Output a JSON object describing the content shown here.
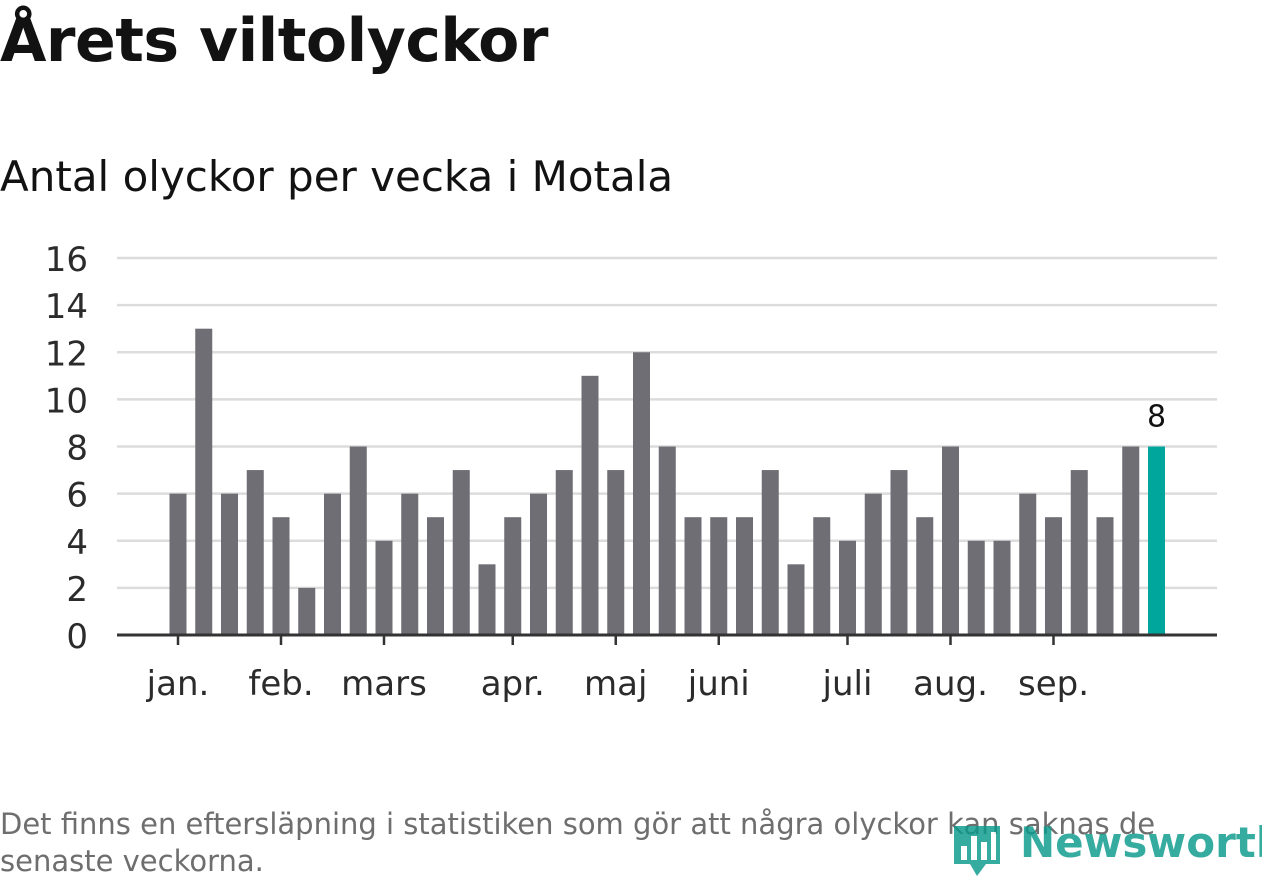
{
  "title": "Årets viltolyckor",
  "subtitle": "Antal olyckor per vecka i Motala",
  "note": "Det finns en eftersläpning i statistiken som gör att några olyckor kan saknas de senaste veckorna.",
  "logo": {
    "text": "Newsworthy",
    "icon": "bar-chart-speech-icon"
  },
  "colors": {
    "bar": "#6f6e74",
    "highlight": "#00a69b",
    "grid": "#dcdcdc",
    "axis": "#333333"
  },
  "chart_data": {
    "type": "bar",
    "title": "Antal olyckor per vecka i Motala",
    "xlabel": "",
    "ylabel": "",
    "ylim": [
      0,
      16
    ],
    "yticks": [
      0,
      2,
      4,
      6,
      8,
      10,
      12,
      14,
      16
    ],
    "grid": true,
    "values": [
      6,
      13,
      6,
      7,
      5,
      2,
      6,
      8,
      4,
      6,
      5,
      7,
      3,
      5,
      6,
      7,
      11,
      7,
      12,
      8,
      5,
      5,
      5,
      7,
      3,
      5,
      4,
      6,
      7,
      5,
      8,
      4,
      4,
      6,
      5,
      7,
      5,
      8,
      8
    ],
    "highlight_index": 38,
    "highlight_label": "8",
    "month_labels": [
      {
        "label": "jan.",
        "bar_index": 0
      },
      {
        "label": "feb.",
        "bar_index": 4
      },
      {
        "label": "mars",
        "bar_index": 8
      },
      {
        "label": "apr.",
        "bar_index": 13
      },
      {
        "label": "maj",
        "bar_index": 17
      },
      {
        "label": "juni",
        "bar_index": 21
      },
      {
        "label": "juli",
        "bar_index": 26
      },
      {
        "label": "aug.",
        "bar_index": 30
      },
      {
        "label": "sep.",
        "bar_index": 34
      }
    ]
  }
}
